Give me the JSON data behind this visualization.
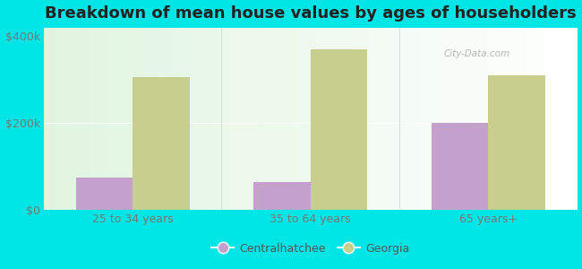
{
  "title": "Breakdown of mean house values by ages of householders",
  "categories": [
    "25 to 34 years",
    "35 to 64 years",
    "65 years+"
  ],
  "centralhatchee": [
    75000,
    65000,
    200000
  ],
  "georgia": [
    305000,
    370000,
    310000
  ],
  "centralhatchee_color": "#c4a0cc",
  "georgia_color": "#c8cf8c",
  "background_color": "#00e5e5",
  "ylim": [
    0,
    420000
  ],
  "yticks": [
    0,
    200000,
    400000
  ],
  "ytick_labels": [
    "$0",
    "$200k",
    "$400k"
  ],
  "legend_labels": [
    "Centralhatchee",
    "Georgia"
  ],
  "bar_width": 0.32,
  "title_fontsize": 13,
  "tick_fontsize": 9,
  "legend_fontsize": 9,
  "watermark": "City-Data.com"
}
